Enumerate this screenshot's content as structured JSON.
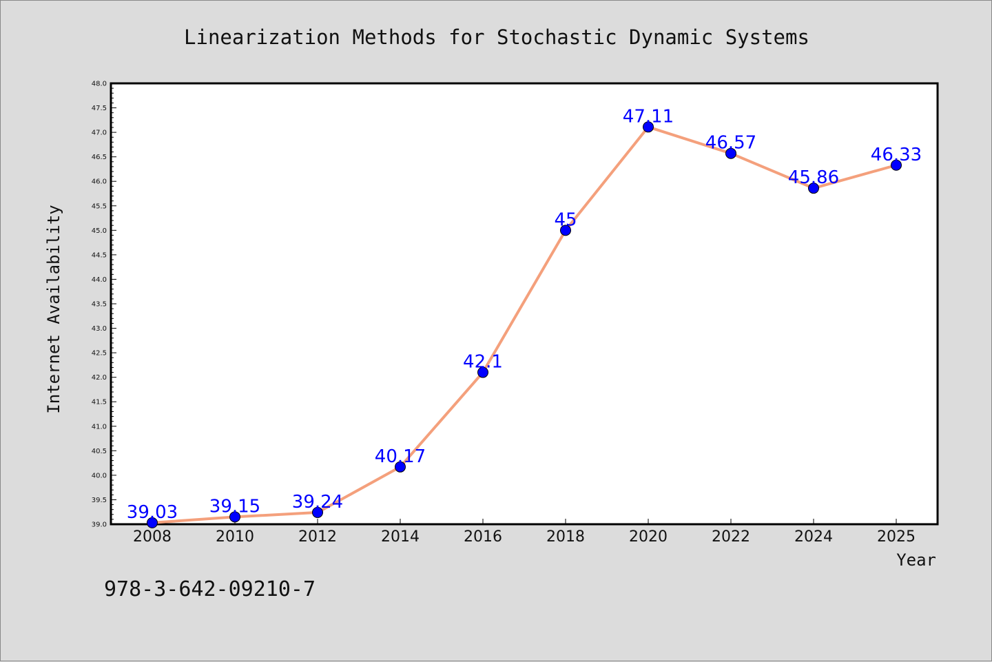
{
  "chart_data": {
    "type": "line",
    "title": "Linearization Methods for Stochastic Dynamic Systems",
    "xlabel": "Year",
    "ylabel": "Internet Availability",
    "ylim": [
      39.0,
      48.0
    ],
    "y_ticks": [
      "39.0",
      "39.5",
      "40.0",
      "40.5",
      "41.0",
      "41.5",
      "42.0",
      "42.5",
      "43.0",
      "43.5",
      "44.0",
      "44.5",
      "45.0",
      "45.5",
      "46.0",
      "46.5",
      "47.0",
      "47.5",
      "48.0"
    ],
    "categories": [
      "2008",
      "2010",
      "2012",
      "2014",
      "2016",
      "2018",
      "2020",
      "2022",
      "2024",
      "2025"
    ],
    "values": [
      39.03,
      39.15,
      39.24,
      40.17,
      42.1,
      45,
      47.11,
      46.57,
      45.86,
      46.33
    ],
    "data_labels": [
      "39.03",
      "39.15",
      "39.24",
      "40.17",
      "42.1",
      "45",
      "47.11",
      "46.57",
      "45.86",
      "46.33"
    ],
    "grid": false,
    "legend": "none",
    "line_color": "#f4a07c",
    "marker_color": "#0000ff",
    "label_color": "#0000ff"
  },
  "footer": {
    "text": "978-3-642-09210-7"
  }
}
